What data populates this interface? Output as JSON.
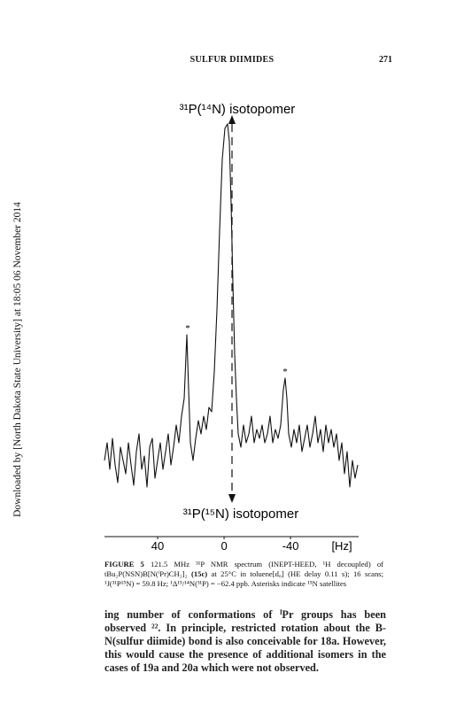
{
  "header": {
    "title": "SULFUR DIIMIDES",
    "page": "271"
  },
  "sidebar": "Downloaded by [North Dakota State University] at 18:05 06 November 2014",
  "figure": {
    "top_label": "³¹P(¹⁴N) isotopomer",
    "bottom_label": "³¹P(¹⁵N) isotopomer",
    "asterisks": [
      "*",
      "*"
    ],
    "xlim": [
      72,
      -81
    ],
    "xticks": [
      40,
      0,
      -40
    ],
    "unit": "[Hz]",
    "caption": [
      "FIGURE 5",
      " 121.5 MHz ³¹P NMR spectrum (INEPT-HEED, ¹H decoupled) of tBu₂P(NSN)B[N(ⁱPr)CH₂]₂ ",
      "(15c)",
      " at 25°C in toluene[d₈] (HE delay 0.11 s); 16 scans; ¹J(³¹P¹⁵N) = 59.8 Hz; ¹Δ¹⁵/¹⁴N(³¹P) = −62.4 ppb. Asterisks indicate ¹⁵N satellites"
    ]
  },
  "body": [
    "ing number of conformations of ⁱPr groups has been observed ²². In princi­ple, restricted rotation about the B-N(sulfur diimide) bond is also conceivable for ",
    "18a",
    ". However, this would cause the presence of additional isomers in the cases of ",
    "19a",
    " and ",
    "20a",
    " which were not observed."
  ]
}
